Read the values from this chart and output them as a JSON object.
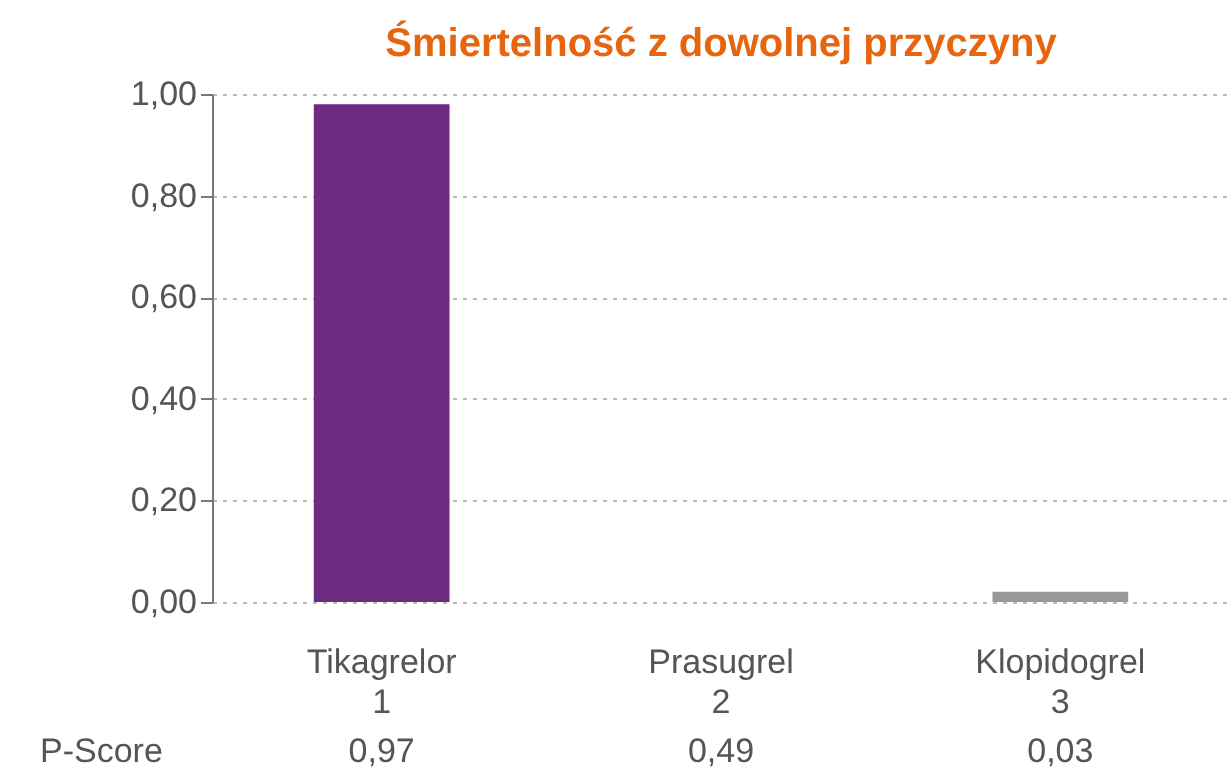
{
  "chart_data": {
    "type": "bar",
    "title": "Śmiertelność z dowolnej przyczyny",
    "categories": [
      "Tikagrelor\n1",
      "Prasugrel\n2",
      "Klopidogrel\n3"
    ],
    "values": [
      0.98,
      0,
      0.02
    ],
    "colors": [
      "#6e2b80",
      "#999999",
      "#999999"
    ],
    "ylim": [
      0,
      1
    ],
    "yticks": [
      {
        "value": 0,
        "label": "0,00"
      },
      {
        "value": 0.2,
        "label": "0,20"
      },
      {
        "value": 0.4,
        "label": "0,40"
      },
      {
        "value": 0.6,
        "label": "0,60"
      },
      {
        "value": 0.8,
        "label": "0,80"
      },
      {
        "value": 1,
        "label": "1,00"
      }
    ],
    "grid": "y",
    "annotations": [
      "P-Score",
      "0,97",
      "0,49",
      "0,03"
    ]
  }
}
